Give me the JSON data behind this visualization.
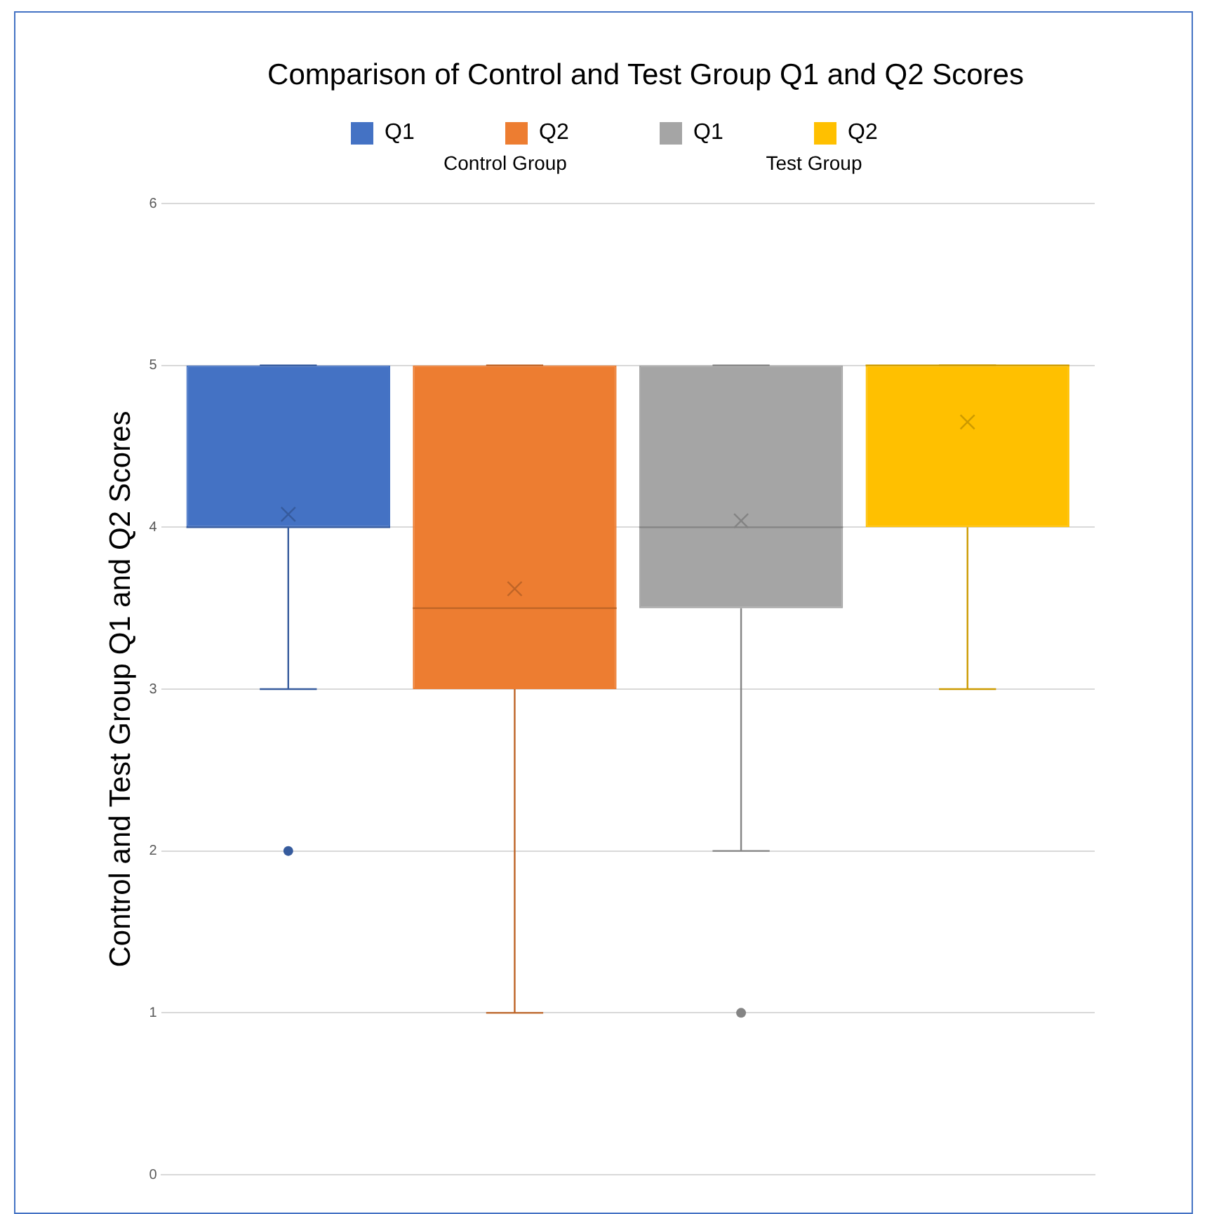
{
  "chart_data": {
    "type": "box",
    "title": "Comparison of Control and Test Group Q1 and Q2 Scores",
    "ylabel": "Control and Test Group Q1 and Q2 Scores",
    "categories": [
      null
    ],
    "series": [
      {
        "name": "Q1",
        "color": "#4472c4",
        "boxes": [
          {
            "low": 3,
            "q1": 4,
            "median": 4,
            "q3": 5,
            "high": 5,
            "mean": 4.08,
            "outliers": [
              2
            ]
          }
        ]
      },
      {
        "name": "Q2",
        "color": "#ed7d31",
        "boxes": [
          {
            "low": 1,
            "q1": 3,
            "median": 3.5,
            "q3": 5,
            "high": 5,
            "mean": 3.62
          }
        ]
      },
      {
        "name": "Q1",
        "color": "#a5a5a5",
        "boxes": [
          {
            "low": 2,
            "q1": 3.5,
            "median": 4,
            "q3": 5,
            "high": 5,
            "mean": 4.04,
            "outliers": [
              1
            ]
          }
        ]
      },
      {
        "name": "Q2",
        "color": "#ffc000",
        "boxes": [
          {
            "low": 3,
            "q1": 4,
            "median": 5,
            "q3": 5,
            "high": 5,
            "mean": 4.65
          }
        ]
      }
    ],
    "annotations": [
      "Control Group",
      "Test Group"
    ],
    "ylim": [
      0,
      6
    ],
    "yticks": [
      0,
      1,
      2,
      3,
      4,
      5,
      6
    ],
    "grid": "y",
    "legend": "top",
    "tick_labels": "y"
  }
}
